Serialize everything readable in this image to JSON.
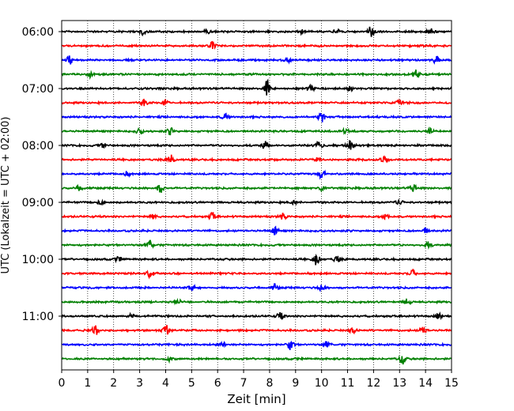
{
  "chart_data": {
    "type": "line",
    "title": "",
    "xlabel": "Zeit  [min]",
    "ylabel": "UTC (Lokalzeit = UTC + 02:00)",
    "xlim": [
      0,
      15
    ],
    "x_ticks": [
      0,
      1,
      2,
      3,
      4,
      5,
      6,
      7,
      8,
      9,
      10,
      11,
      12,
      13,
      14,
      15
    ],
    "y_tick_labels": [
      "06:00",
      "07:00",
      "08:00",
      "09:00",
      "10:00",
      "11:00"
    ],
    "grid": "vertical dotted",
    "trace_colors": [
      "#000000",
      "#ff0000",
      "#0000ff",
      "#008000"
    ],
    "series": [
      {
        "start": "06:00",
        "color": "#000000",
        "events": [
          [
            3.1,
            0.28
          ],
          [
            5.6,
            0.18
          ],
          [
            9.2,
            0.16
          ],
          [
            10.6,
            0.2
          ],
          [
            11.9,
            0.42
          ],
          [
            14.2,
            0.26
          ]
        ]
      },
      {
        "start": "06:15",
        "color": "#ff0000",
        "events": [
          [
            5.8,
            0.3
          ]
        ]
      },
      {
        "start": "06:30",
        "color": "#0000ff",
        "events": [
          [
            0.3,
            0.32
          ],
          [
            8.7,
            0.22
          ],
          [
            14.4,
            0.28
          ]
        ]
      },
      {
        "start": "06:45",
        "color": "#008000",
        "events": [
          [
            1.1,
            0.2
          ],
          [
            13.6,
            0.38
          ]
        ]
      },
      {
        "start": "07:00",
        "color": "#000000",
        "events": [
          [
            7.9,
            0.62
          ],
          [
            9.6,
            0.24
          ],
          [
            11.1,
            0.16
          ]
        ]
      },
      {
        "start": "07:15",
        "color": "#ff0000",
        "events": [
          [
            3.2,
            0.3
          ],
          [
            4.0,
            0.22
          ],
          [
            13.0,
            0.2
          ]
        ]
      },
      {
        "start": "07:30",
        "color": "#0000ff",
        "events": [
          [
            6.3,
            0.22
          ],
          [
            10.0,
            0.42
          ]
        ]
      },
      {
        "start": "07:45",
        "color": "#008000",
        "events": [
          [
            3.0,
            0.26
          ],
          [
            4.2,
            0.3
          ],
          [
            10.9,
            0.18
          ],
          [
            14.2,
            0.2
          ]
        ]
      },
      {
        "start": "08:00",
        "color": "#000000",
        "events": [
          [
            1.6,
            0.18
          ],
          [
            7.8,
            0.32
          ],
          [
            9.9,
            0.36
          ],
          [
            11.1,
            0.32
          ]
        ]
      },
      {
        "start": "08:15",
        "color": "#ff0000",
        "events": [
          [
            4.2,
            0.36
          ],
          [
            9.8,
            0.2
          ],
          [
            12.4,
            0.22
          ]
        ]
      },
      {
        "start": "08:30",
        "color": "#0000ff",
        "events": [
          [
            2.5,
            0.16
          ],
          [
            10.0,
            0.32
          ]
        ]
      },
      {
        "start": "08:45",
        "color": "#008000",
        "events": [
          [
            0.7,
            0.2
          ],
          [
            3.8,
            0.32
          ],
          [
            10.0,
            0.2
          ],
          [
            13.5,
            0.32
          ]
        ]
      },
      {
        "start": "09:00",
        "color": "#000000",
        "events": [
          [
            1.5,
            0.18
          ],
          [
            8.9,
            0.16
          ],
          [
            13.0,
            0.2
          ]
        ]
      },
      {
        "start": "09:15",
        "color": "#ff0000",
        "events": [
          [
            3.5,
            0.2
          ],
          [
            5.8,
            0.3
          ],
          [
            8.5,
            0.28
          ],
          [
            12.5,
            0.22
          ]
        ]
      },
      {
        "start": "09:30",
        "color": "#0000ff",
        "events": [
          [
            8.2,
            0.3
          ],
          [
            14.0,
            0.22
          ]
        ]
      },
      {
        "start": "09:45",
        "color": "#008000",
        "events": [
          [
            3.4,
            0.34
          ],
          [
            14.1,
            0.3
          ]
        ]
      },
      {
        "start": "10:00",
        "color": "#000000",
        "events": [
          [
            2.2,
            0.18
          ],
          [
            9.8,
            0.42
          ],
          [
            10.6,
            0.22
          ]
        ]
      },
      {
        "start": "10:15",
        "color": "#ff0000",
        "events": [
          [
            3.4,
            0.32
          ],
          [
            13.5,
            0.3
          ]
        ]
      },
      {
        "start": "10:30",
        "color": "#0000ff",
        "events": [
          [
            5.0,
            0.18
          ],
          [
            8.2,
            0.26
          ],
          [
            10.0,
            0.24
          ]
        ]
      },
      {
        "start": "10:45",
        "color": "#008000",
        "events": [
          [
            4.5,
            0.2
          ],
          [
            13.3,
            0.26
          ]
        ]
      },
      {
        "start": "11:00",
        "color": "#000000",
        "events": [
          [
            2.7,
            0.18
          ],
          [
            8.4,
            0.26
          ],
          [
            14.5,
            0.22
          ]
        ]
      },
      {
        "start": "11:15",
        "color": "#ff0000",
        "events": [
          [
            1.3,
            0.42
          ],
          [
            4.0,
            0.44
          ],
          [
            11.2,
            0.2
          ],
          [
            13.9,
            0.32
          ]
        ]
      },
      {
        "start": "11:30",
        "color": "#0000ff",
        "events": [
          [
            6.2,
            0.18
          ],
          [
            8.8,
            0.36
          ],
          [
            10.2,
            0.24
          ]
        ]
      },
      {
        "start": "11:45",
        "color": "#008000",
        "events": [
          [
            4.2,
            0.2
          ],
          [
            13.1,
            0.42
          ]
        ]
      }
    ]
  }
}
